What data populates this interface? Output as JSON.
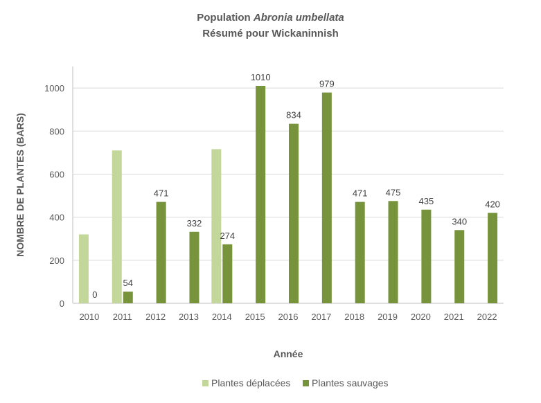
{
  "chart_data": {
    "type": "bar",
    "title_prefix": "Population ",
    "title_italic": "Abronia umbellata",
    "subtitle": "Résumé pour Wickaninnish",
    "xlabel": "Année",
    "ylabel": "NOMBRE DE PLANTES (BARS)",
    "ylim": [
      0,
      1100
    ],
    "yticks": [
      0,
      200,
      400,
      600,
      800,
      1000
    ],
    "grid": true,
    "legend_position": "bottom",
    "categories": [
      "2010",
      "2011",
      "2012",
      "2013",
      "2014",
      "2015",
      "2016",
      "2017",
      "2018",
      "2019",
      "2020",
      "2021",
      "2022"
    ],
    "series": [
      {
        "name": "Plantes déplacées",
        "color": "#c4d79b",
        "values": [
          320,
          710,
          null,
          null,
          716,
          null,
          null,
          null,
          null,
          null,
          null,
          null,
          null
        ],
        "labels": false
      },
      {
        "name": "Plantes sauvages",
        "color": "#77933c",
        "values": [
          0,
          54,
          471,
          332,
          274,
          1010,
          834,
          979,
          471,
          475,
          435,
          340,
          420
        ],
        "labels": true
      }
    ]
  }
}
